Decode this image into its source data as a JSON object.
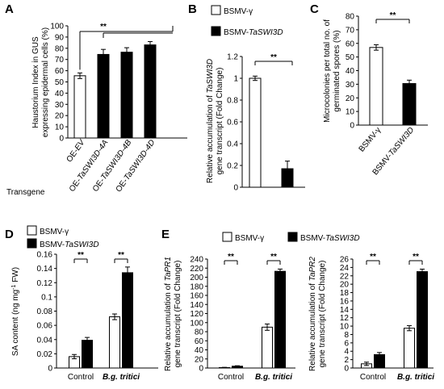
{
  "chart_data": [
    {
      "panel": "A",
      "type": "bar",
      "ylabel_line1": "Haustorium Index in GUS",
      "ylabel_line2": "expressing  epidermal cells (%)",
      "ylim": [
        0,
        100
      ],
      "yticks": [
        0,
        10,
        20,
        30,
        40,
        50,
        60,
        70,
        80,
        90,
        100
      ],
      "row_label": "Transgene",
      "categories": [
        {
          "pre": "OE-",
          "it": "EV"
        },
        {
          "pre": "OE-",
          "it": "TaSWI3D-4A"
        },
        {
          "pre": "OE-",
          "it": "TaSWI3D-4B"
        },
        {
          "pre": "OE-",
          "it": "TaSWI3D-4D"
        }
      ],
      "values": [
        55.5,
        74.5,
        76.5,
        83
      ],
      "errors": [
        2.5,
        4.5,
        4,
        3
      ],
      "fills": [
        "#ffffff",
        "#000000",
        "#000000",
        "#000000"
      ],
      "significance": "**"
    },
    {
      "panel": "B",
      "type": "bar",
      "ylabel_line1_pre": "Relative accumulation of ",
      "ylabel_line1_it": "TaSWI3D",
      "ylabel_line2": "gene transcript  (Fold Change)",
      "ylim": [
        0,
        1.2
      ],
      "yticks": [
        0,
        0.2,
        0.4,
        0.6,
        0.8,
        1,
        1.2
      ],
      "ytick_labels": [
        "0",
        "0.2",
        "0.4",
        "0.6",
        "0.8",
        "1",
        "1.2"
      ],
      "legend": [
        {
          "pre": "BSMV-γ",
          "it": "",
          "fill": "#ffffff"
        },
        {
          "pre": "BSMV-",
          "it": "TaSWI3D",
          "fill": "#000000"
        }
      ],
      "values": [
        1.0,
        0.17
      ],
      "errors": [
        0.02,
        0.07
      ],
      "significance": "**"
    },
    {
      "panel": "C",
      "type": "bar",
      "ylabel_line1": "Microcolonies per total no. of",
      "ylabel_line2": "germinated spores (%)",
      "ylim": [
        0,
        80
      ],
      "yticks": [
        0,
        10,
        20,
        30,
        40,
        50,
        60,
        70,
        80
      ],
      "categories": [
        {
          "pre": "BSMV-γ",
          "it": ""
        },
        {
          "pre": "BSMV-",
          "it": "TaSWI3D"
        }
      ],
      "values": [
        57,
        30.5
      ],
      "errors": [
        2,
        2.5
      ],
      "fills": [
        "#ffffff",
        "#000000"
      ],
      "significance": "**"
    },
    {
      "panel": "D",
      "type": "bar",
      "ylabel_pre": "SA content (ng mg",
      "ylabel_sup": "-1",
      "ylabel_post": " FW)",
      "ylim": [
        0,
        0.16
      ],
      "yticks": [
        0,
        0.02,
        0.04,
        0.06,
        0.08,
        0.1,
        0.12,
        0.14,
        0.16
      ],
      "ytick_labels": [
        "0",
        "0.02",
        "0.04",
        "0.06",
        "0.08",
        "0.1",
        "0.12",
        "0.14",
        "0.16"
      ],
      "legend": [
        {
          "pre": "BSMV-γ",
          "it": "",
          "fill": "#ffffff"
        },
        {
          "pre": "BSMV-",
          "it": "TaSWI3D",
          "fill": "#000000"
        }
      ],
      "groups": [
        {
          "label": "Control",
          "italic": false
        },
        {
          "label": "B.g. tritici",
          "italic": true
        }
      ],
      "series": [
        {
          "values": [
            0.016,
            0.072
          ],
          "errors": [
            0.003,
            0.004
          ],
          "fill": "#ffffff"
        },
        {
          "values": [
            0.039,
            0.134
          ],
          "errors": [
            0.004,
            0.008
          ],
          "fill": "#000000"
        }
      ],
      "significance": [
        "**",
        "**"
      ]
    },
    {
      "panel": "E",
      "type": "bar",
      "legend": [
        {
          "pre": "BSMV-γ",
          "it": "",
          "fill": "#ffffff"
        },
        {
          "pre": "BSMV-",
          "it": "TaSWI3D",
          "fill": "#000000"
        }
      ],
      "subplots": [
        {
          "ylabel_line1_pre": "Relative accumulation of ",
          "ylabel_line1_it": "TaPR1",
          "ylabel_line2": "gene transcript  (Fold Change)",
          "ylim": [
            0,
            240
          ],
          "yticks": [
            0,
            20,
            40,
            60,
            80,
            100,
            120,
            140,
            160,
            180,
            200,
            220,
            240
          ],
          "groups": [
            {
              "label": "Control",
              "italic": false
            },
            {
              "label": "B.g. tritici",
              "italic": true
            }
          ],
          "series": [
            {
              "values": [
                1,
                90
              ],
              "errors": [
                0.5,
                7
              ],
              "fill": "#ffffff"
            },
            {
              "values": [
                4,
                213
              ],
              "errors": [
                1,
                5
              ],
              "fill": "#000000"
            }
          ],
          "significance": [
            "**",
            "**"
          ]
        },
        {
          "ylabel_line1_pre": "Relative accumulation of ",
          "ylabel_line1_it": "TaPR2",
          "ylabel_line2": "gene transcript  (Fold Change)",
          "ylim": [
            0,
            26
          ],
          "yticks": [
            0,
            2,
            4,
            6,
            8,
            10,
            12,
            14,
            16,
            18,
            20,
            22,
            24,
            26
          ],
          "groups": [
            {
              "label": "Control",
              "italic": false
            },
            {
              "label": "B.g. tritici",
              "italic": true
            }
          ],
          "series": [
            {
              "values": [
                1,
                9.5
              ],
              "errors": [
                0.4,
                0.6
              ],
              "fill": "#ffffff"
            },
            {
              "values": [
                3.2,
                23
              ],
              "errors": [
                0.5,
                0.6
              ],
              "fill": "#000000"
            }
          ],
          "significance": [
            "**",
            "**"
          ]
        }
      ]
    }
  ]
}
